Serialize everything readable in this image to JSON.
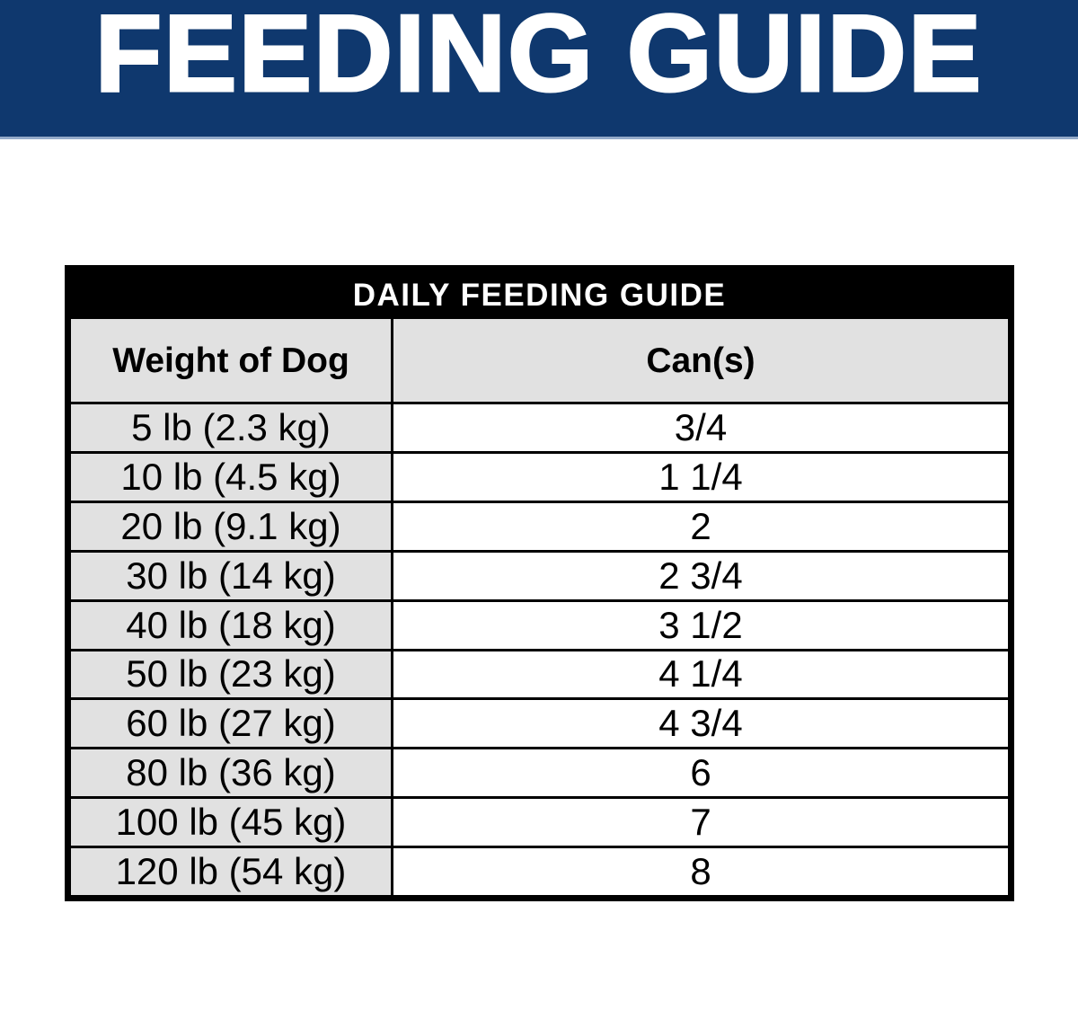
{
  "banner": {
    "title": "FEEDING GUIDE",
    "bg_color": "#0f386e",
    "underline_color": "#94aac9",
    "text_color": "#ffffff"
  },
  "table": {
    "title": "DAILY FEEDING GUIDE",
    "columns": [
      "Weight of Dog",
      "Can(s)"
    ],
    "rows": [
      {
        "weight": "5 lb (2.3 kg)",
        "cans": "3/4"
      },
      {
        "weight": "10 lb (4.5 kg)",
        "cans": "1 1/4"
      },
      {
        "weight": "20 lb (9.1 kg)",
        "cans": "2"
      },
      {
        "weight": "30 lb (14 kg)",
        "cans": "2 3/4"
      },
      {
        "weight": "40 lb (18 kg)",
        "cans": "3 1/2"
      },
      {
        "weight": "50 lb (23 kg)",
        "cans": "4 1/4"
      },
      {
        "weight": "60 lb (27 kg)",
        "cans": "4 3/4"
      },
      {
        "weight": "80 lb (36 kg)",
        "cans": "6"
      },
      {
        "weight": "100 lb (45 kg)",
        "cans": "7"
      },
      {
        "weight": "120 lb (54 kg)",
        "cans": "8"
      }
    ],
    "colors": {
      "title_bg": "#000000",
      "title_text": "#ffffff",
      "header_bg": "#e1e1e1",
      "weight_cell_bg": "#e1e1e1",
      "cans_cell_bg": "#ffffff",
      "border": "#000000"
    }
  }
}
